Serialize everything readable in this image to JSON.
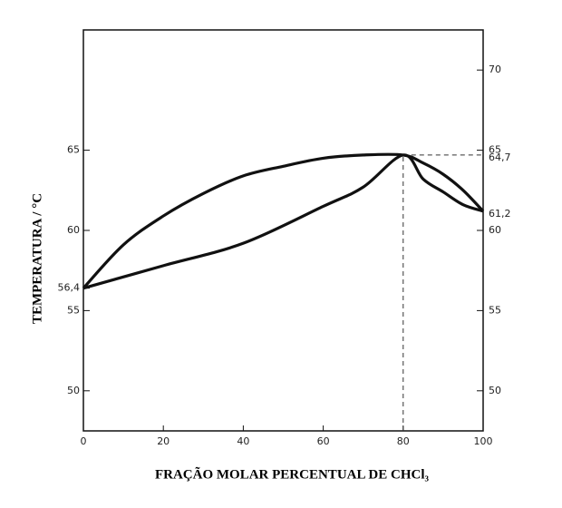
{
  "chart_data": {
    "type": "line",
    "xlabel": "FRAÇÃO MOLAR PERCENTUAL DE CHCl₃",
    "ylabel": "TEMPERATURA / °C",
    "xlim": [
      0,
      100
    ],
    "xticks": [
      0,
      20,
      40,
      60,
      80,
      100
    ],
    "ylim": [
      47.5,
      72.5
    ],
    "yticks": [
      50,
      55,
      {
        "value": 56.4,
        "label": "56,4"
      },
      60,
      65
    ],
    "y2lim": [
      47.5,
      72.5
    ],
    "y2ticks": [
      50,
      55,
      60,
      {
        "value": 61.2,
        "label": "61,2"
      },
      {
        "value": 64.7,
        "label": "64,7"
      },
      65,
      70
    ],
    "azeotrope": {
      "x": 80,
      "y": 64.7
    },
    "series": [
      {
        "color": "#111111",
        "x": [
          0,
          10,
          20,
          30,
          40,
          50,
          60,
          70,
          80,
          85,
          90,
          95,
          100
        ],
        "values": [
          56.4,
          59.1,
          60.9,
          62.3,
          63.4,
          64.0,
          64.5,
          64.7,
          64.7,
          64.2,
          63.5,
          62.5,
          61.2
        ]
      },
      {
        "color": "#111111",
        "x": [
          0,
          20,
          40,
          60,
          70,
          80,
          85,
          90,
          95,
          100
        ],
        "values": [
          56.4,
          57.8,
          59.2,
          61.5,
          62.7,
          64.7,
          63.2,
          62.4,
          61.6,
          61.2
        ]
      }
    ]
  }
}
